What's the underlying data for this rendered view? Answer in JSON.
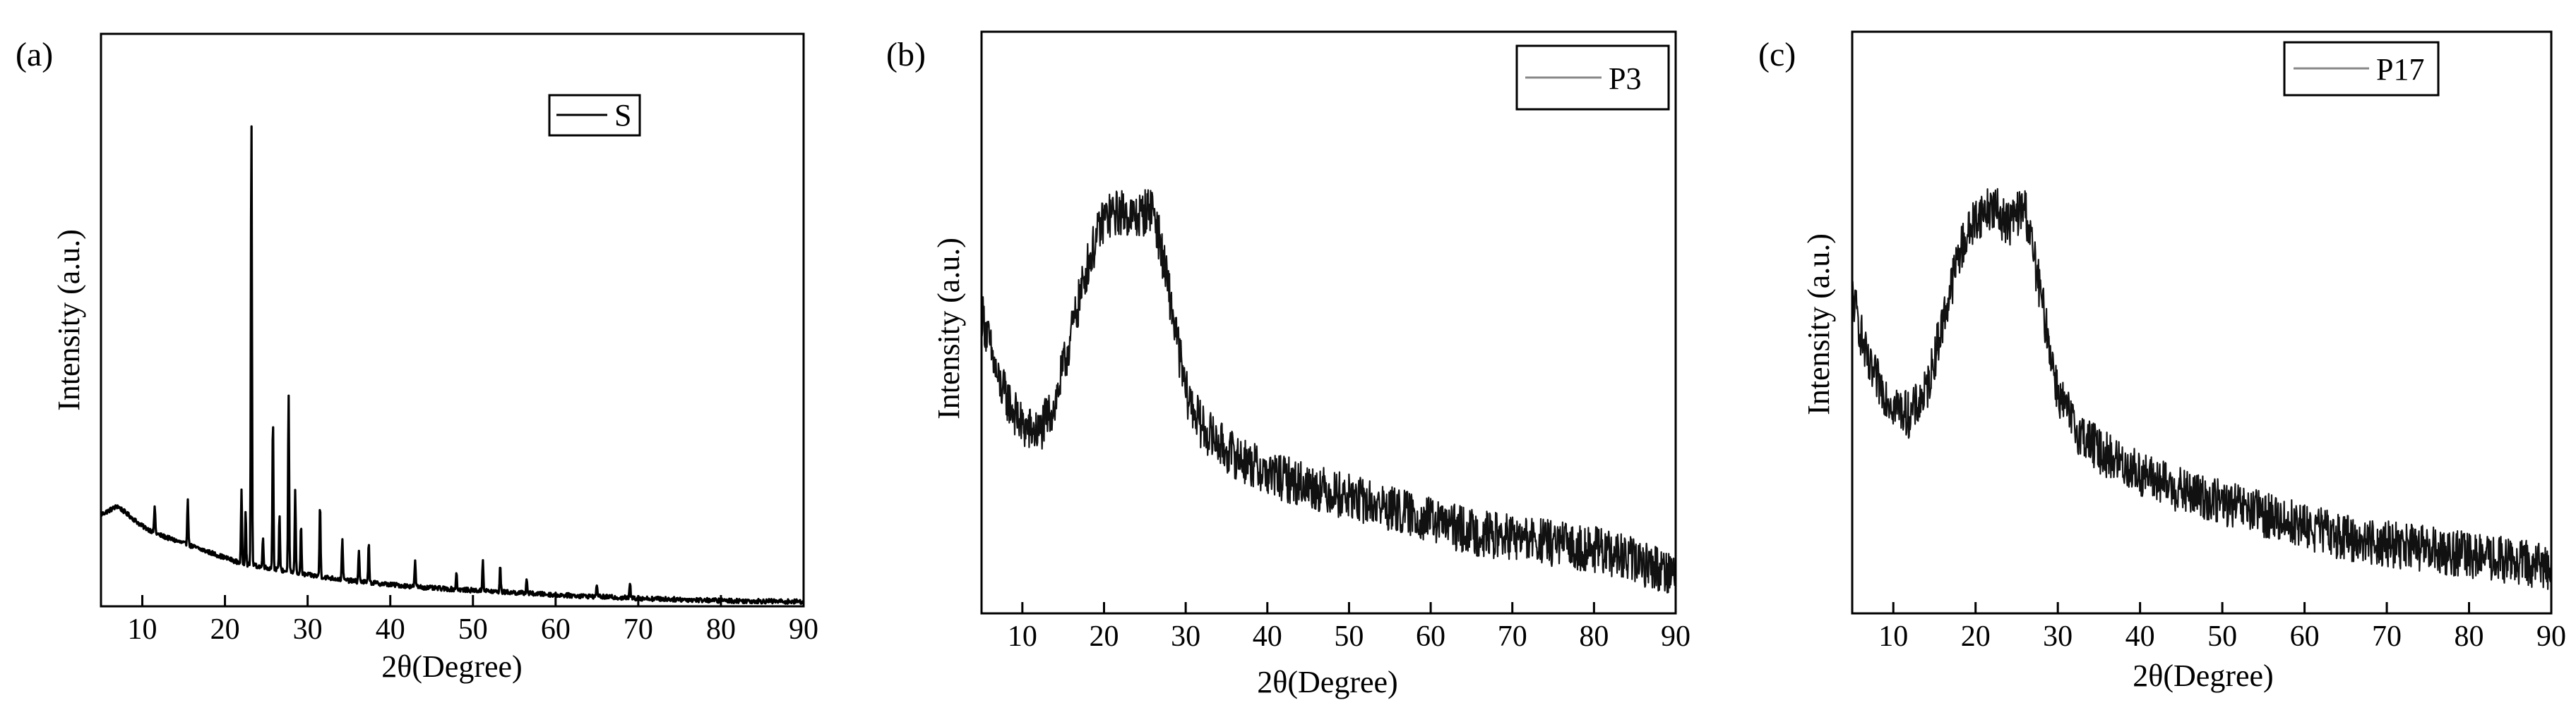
{
  "chart_data": [
    {
      "type": "line",
      "panel_label": "(a)",
      "xlabel": "2θ(Degree)",
      "ylabel": "Intensity (a.u.)",
      "xlim": [
        5,
        90
      ],
      "ylim": [
        0,
        100
      ],
      "xticks": [
        10,
        20,
        30,
        40,
        50,
        60,
        70,
        80,
        90
      ],
      "legend": "top-right",
      "series": [
        {
          "name": "S",
          "x": [
            5,
            7,
            10,
            12,
            15,
            18,
            20,
            22,
            24,
            26,
            28,
            30,
            35,
            40,
            45,
            50,
            55,
            60,
            65,
            70,
            75,
            80,
            85,
            90
          ],
          "y": [
            16,
            17.5,
            14,
            12.5,
            11,
            9.5,
            8.5,
            7.5,
            7,
            6.5,
            6,
            5.5,
            4.5,
            3.8,
            3.2,
            2.8,
            2.4,
            2,
            1.7,
            1.4,
            1.2,
            1,
            0.9,
            0.8
          ],
          "peaks": [
            {
              "x": 11.5,
              "y": 17.5
            },
            {
              "x": 15.5,
              "y": 19
            },
            {
              "x": 22.0,
              "y": 20
            },
            {
              "x": 22.5,
              "y": 17
            },
            {
              "x": 23.2,
              "y": 86
            },
            {
              "x": 24.6,
              "y": 12
            },
            {
              "x": 25.8,
              "y": 33
            },
            {
              "x": 26.6,
              "y": 16
            },
            {
              "x": 27.7,
              "y": 37
            },
            {
              "x": 28.5,
              "y": 20
            },
            {
              "x": 29.2,
              "y": 14
            },
            {
              "x": 31.5,
              "y": 18
            },
            {
              "x": 34.2,
              "y": 12
            },
            {
              "x": 36.2,
              "y": 10
            },
            {
              "x": 37.4,
              "y": 11
            },
            {
              "x": 43.0,
              "y": 8
            },
            {
              "x": 48.0,
              "y": 6
            },
            {
              "x": 51.2,
              "y": 8
            },
            {
              "x": 53.3,
              "y": 7
            },
            {
              "x": 56.5,
              "y": 5
            },
            {
              "x": 65.0,
              "y": 4
            },
            {
              "x": 69.0,
              "y": 4
            }
          ]
        }
      ]
    },
    {
      "type": "line",
      "panel_label": "(b)",
      "xlabel": "2θ(Degree)",
      "ylabel": "Intensity (a.u.)",
      "xlim": [
        5,
        90
      ],
      "ylim": [
        0,
        100
      ],
      "xticks": [
        10,
        20,
        30,
        40,
        50,
        60,
        70,
        80,
        90
      ],
      "legend": "top-right",
      "series": [
        {
          "name": "P3",
          "x": [
            5,
            7,
            10,
            12,
            14,
            16,
            18,
            20,
            22,
            24,
            26,
            28,
            30,
            32,
            35,
            40,
            45,
            50,
            55,
            60,
            65,
            70,
            75,
            80,
            85,
            90
          ],
          "y": [
            52,
            40,
            32,
            31,
            36,
            48,
            60,
            68,
            69,
            68,
            70,
            55,
            38,
            32,
            28,
            24,
            22,
            20,
            18,
            16,
            14,
            13,
            12,
            11,
            9,
            7
          ],
          "noise": 4
        }
      ]
    },
    {
      "type": "line",
      "panel_label": "(c)",
      "xlabel": "2θ(Degree)",
      "ylabel": "Intensity (a.u.)",
      "xlim": [
        5,
        90
      ],
      "ylim": [
        0,
        100
      ],
      "xticks": [
        10,
        20,
        30,
        40,
        50,
        60,
        70,
        80,
        90
      ],
      "legend": "top-right",
      "series": [
        {
          "name": "P17",
          "x": [
            5,
            7,
            10,
            12,
            14,
            16,
            18,
            20,
            22,
            24,
            26,
            28,
            30,
            32,
            35,
            40,
            45,
            50,
            55,
            60,
            65,
            70,
            75,
            80,
            85,
            90
          ],
          "y": [
            55,
            42,
            36,
            34,
            38,
            50,
            62,
            68,
            70,
            67,
            70,
            54,
            38,
            32,
            28,
            24,
            21,
            19,
            17,
            15,
            13,
            12,
            11,
            10,
            9,
            8
          ],
          "noise": 4
        }
      ]
    }
  ]
}
